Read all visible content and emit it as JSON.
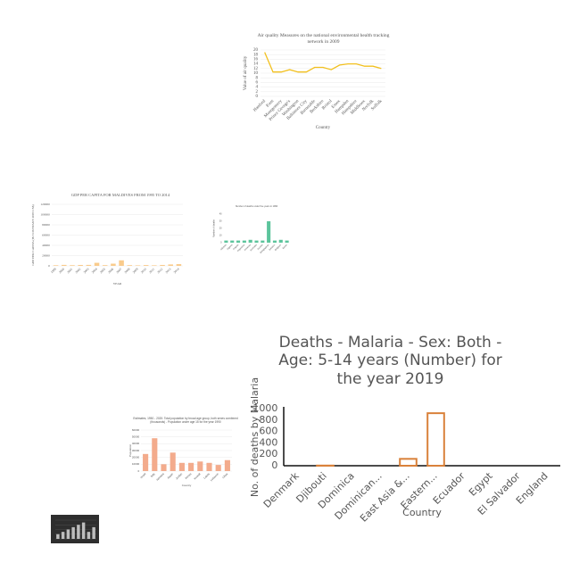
{
  "chart_data": [
    {
      "type": "line",
      "title": "Air quality Measures on the national environmental health tracking network in 2009",
      "x_label": "Country",
      "y_label": "Value of air quality",
      "categories": [
        "Hanford",
        "Kent",
        "Montgomery",
        "Prince George's",
        "Washington",
        "Baltimore City",
        "Barnstable",
        "Berkshire",
        "Bristol",
        "Essex",
        "Hampden",
        "Hampshire",
        "Middlesex",
        "Norfolk",
        "Suffolk"
      ],
      "values": [
        19,
        10.5,
        10.5,
        11.5,
        10.5,
        10.5,
        12.5,
        12.5,
        11.5,
        13.5,
        14,
        14,
        13,
        13,
        12
      ],
      "color": "#f2c01e",
      "ylim": [
        0,
        20
      ],
      "yticks": [
        0,
        2,
        4,
        6,
        8,
        10,
        12,
        14,
        16,
        18,
        20
      ],
      "grid": true
    },
    {
      "type": "bar",
      "title": "GDP PER CAPITA FOR MALDIVES FROM 1995 TO 2014",
      "x_label": "YEAR",
      "y_label": "GDP PER CAPITA (IN CONSTANT 2005 US$)",
      "categories": [
        "1999",
        "2000",
        "2001",
        "2002",
        "2003",
        "2004",
        "2005",
        "2006",
        "2007",
        "2008",
        "2009",
        "2010",
        "2011",
        "2012",
        "2013",
        "2014"
      ],
      "values": [
        1200,
        1900,
        1300,
        1800,
        1900,
        6000,
        1400,
        4300,
        10800,
        1400,
        1000,
        1600,
        1100,
        1800,
        2800,
        3400
      ],
      "color": "#f9cb8c",
      "ylim": [
        0,
        120000
      ],
      "yticks": [
        0,
        20000,
        40000,
        60000,
        80000,
        100000,
        120000
      ],
      "grid": true
    },
    {
      "type": "bar",
      "title": "Number of deaths under five years in 1990",
      "y_label": "Number of deaths",
      "categories": [
        "Albania",
        "Algeria",
        "Angola",
        "Argentina",
        "Armenia",
        "Australia",
        "Austria",
        "Bangladesh",
        "Belarus",
        "Belgium",
        "Benin"
      ],
      "values": [
        3,
        3,
        3,
        3,
        4,
        3,
        3,
        30,
        3,
        4,
        3
      ],
      "color": "#5cc49c",
      "ylim": [
        0,
        40
      ],
      "yticks": [
        0,
        10,
        20,
        30,
        40
      ],
      "grid": false
    },
    {
      "type": "bar",
      "title": "Estimates, 1950 - 2020: Total population by broad age group, both sexes combined (thousands) - Population under age 15 for the year 1990",
      "x_label": "Country",
      "y_label": "Population",
      "categories": [
        "Israel",
        "Italy",
        "Jamaica",
        "Japan",
        "Jordan",
        "Kenya",
        "Kuwait",
        "Latvia",
        "Lebanon",
        "Libya"
      ],
      "values": [
        25000,
        48000,
        10000,
        27000,
        12000,
        12000,
        14000,
        12000,
        9000,
        16000
      ],
      "color": "#f3ab8c",
      "ylim": [
        0,
        60000
      ],
      "yticks": [
        0,
        10000,
        20000,
        30000,
        40000,
        50000,
        60000
      ],
      "grid": true
    },
    {
      "type": "bar",
      "title": "Deaths - Malaria - Sex: Both - Age: 5-14 years (Number) for the year 2019",
      "x_label": "Country",
      "y_label": "No. of deaths by Malaria",
      "categories": [
        "Denmark",
        "Djibouti",
        "Dominica",
        "Dominican...",
        "East Asia &...",
        "Eastern...",
        "Ecuador",
        "Egypt",
        "El Salvador",
        "England"
      ],
      "values": [
        0,
        3,
        0,
        0,
        120,
        920,
        0,
        0,
        0,
        0
      ],
      "color": "#d9813a",
      "bar_style": "outline",
      "ylim": [
        0,
        1000
      ],
      "yticks": [
        0,
        200,
        400,
        600,
        800,
        1000
      ],
      "grid": false
    },
    {
      "type": "bar",
      "values": [
        2,
        3,
        4,
        5,
        6,
        7,
        3,
        5
      ],
      "color": "#bdbdbd",
      "background": "#2e2e2e",
      "ylim": [
        0,
        8
      ],
      "yticks": [
        0,
        2,
        4,
        6,
        8
      ],
      "grid": true
    }
  ]
}
